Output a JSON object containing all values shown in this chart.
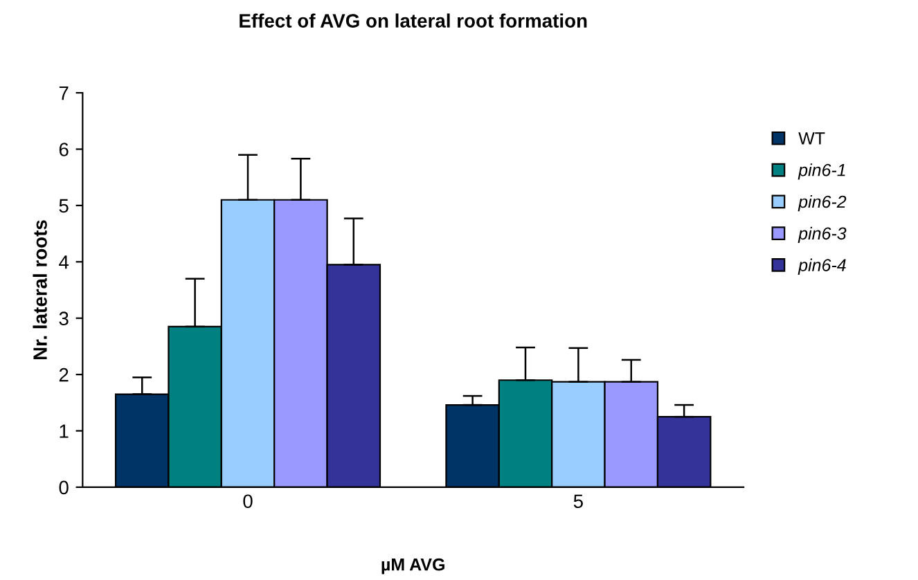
{
  "chart_data": {
    "type": "bar",
    "title": "Effect of AVG on lateral root formation",
    "xlabel": "µM AVG",
    "ylabel": "Nr. lateral roots",
    "categories": [
      "0",
      "5"
    ],
    "series": [
      {
        "name": "WT",
        "color": "#003366",
        "values": [
          1.65,
          1.46
        ],
        "errors": [
          [
            1.65,
            1.95
          ],
          [
            1.46,
            1.62
          ]
        ]
      },
      {
        "name": "pin6-1",
        "color": "#008080",
        "values": [
          2.85,
          1.9
        ],
        "errors": [
          [
            2.85,
            3.7
          ],
          [
            1.9,
            2.48
          ]
        ]
      },
      {
        "name": "pin6-2",
        "color": "#99ccff",
        "values": [
          5.1,
          1.87
        ],
        "errors": [
          [
            5.1,
            5.9
          ],
          [
            1.87,
            2.47
          ]
        ]
      },
      {
        "name": "pin6-3",
        "color": "#9999ff",
        "values": [
          5.1,
          1.87
        ],
        "errors": [
          [
            5.1,
            5.83
          ],
          [
            1.87,
            2.26
          ]
        ]
      },
      {
        "name": "pin6-4",
        "color": "#333399",
        "values": [
          3.95,
          1.25
        ],
        "errors": [
          [
            3.95,
            4.77
          ],
          [
            1.25,
            1.46
          ]
        ]
      }
    ],
    "ylim": [
      0,
      7
    ],
    "yticks": [
      0,
      1,
      2,
      3,
      4,
      5,
      6,
      7
    ],
    "grid": false,
    "legend": "right"
  }
}
